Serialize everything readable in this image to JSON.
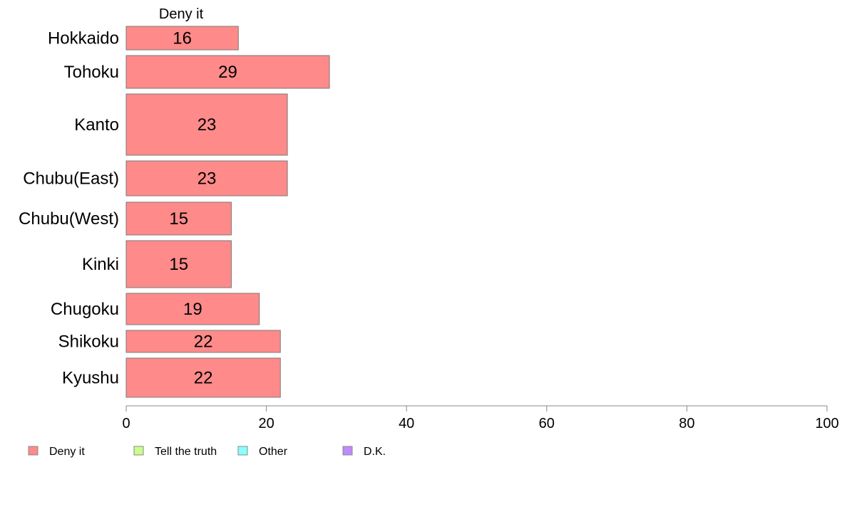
{
  "chart_data": {
    "type": "bar",
    "orientation": "horizontal",
    "stacked": true,
    "categories": [
      "Hokkaido",
      "Tohoku",
      "Kanto",
      "Chubu(East)",
      "Chubu(West)",
      "Kinki",
      "Chugoku",
      "Shikoku",
      "Kyushu"
    ],
    "series": [
      {
        "name": "Deny it",
        "values": [
          16,
          29,
          23,
          23,
          15,
          15,
          19,
          22,
          22
        ]
      }
    ],
    "data_labels": [
      "16",
      "29",
      "23",
      "23",
      "15",
      "15",
      "19",
      "22",
      "22"
    ],
    "column_header": "Deny it",
    "legend": [
      {
        "label": "Deny it",
        "color": "#ff8a8a"
      },
      {
        "label": "Tell the truth",
        "color": "#c8ff8a"
      },
      {
        "label": "Other",
        "color": "#8affff"
      },
      {
        "label": "D.K.",
        "color": "#bf8aff"
      }
    ],
    "xlim": [
      0,
      100
    ],
    "x_ticks": [
      "0",
      "20",
      "40",
      "60",
      "80",
      "100"
    ],
    "grid": false,
    "legend_position": "bottom"
  }
}
